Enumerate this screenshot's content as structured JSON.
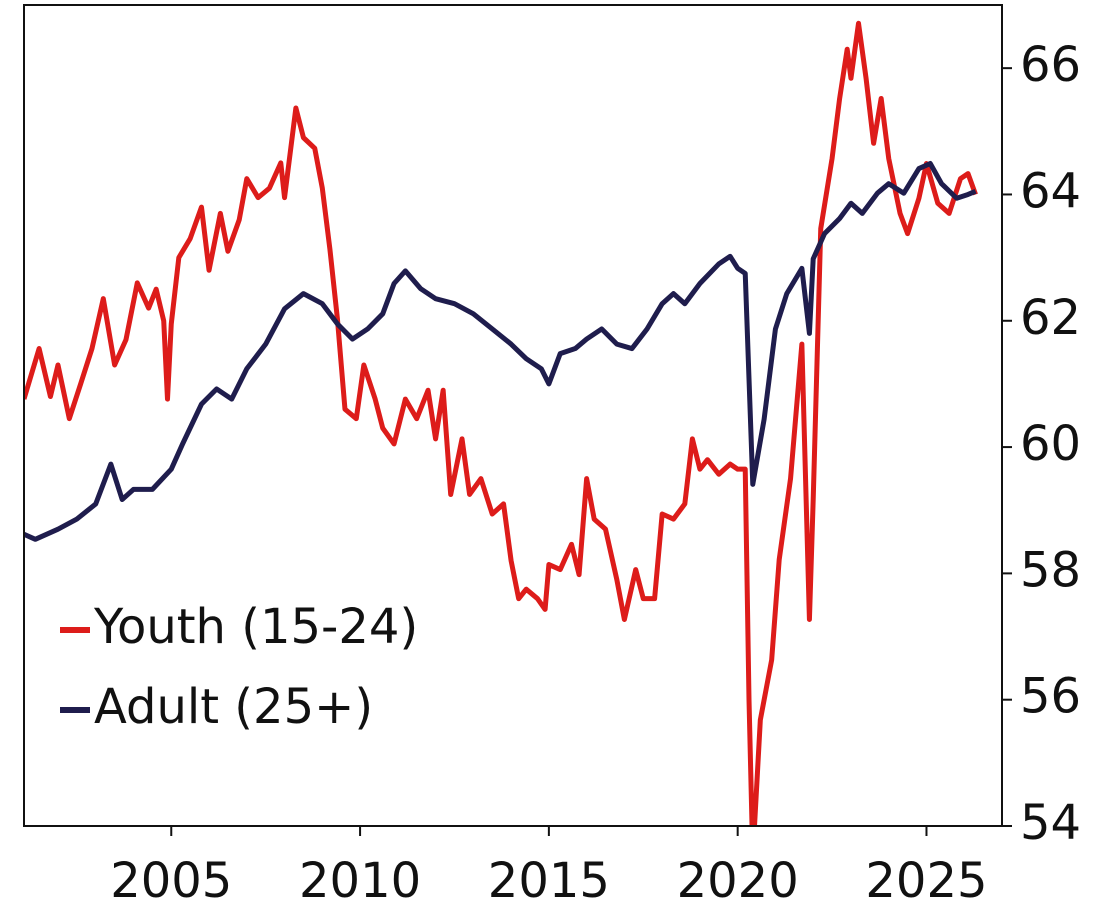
{
  "chart_data": {
    "type": "line",
    "xlim": [
      2001.1,
      2027.0
    ],
    "xticks": [
      2005,
      2010,
      2015,
      2020,
      2025
    ],
    "ylim": [
      54,
      67
    ],
    "yticks": [
      54,
      56,
      58,
      60,
      62,
      64,
      66
    ],
    "y_axis_side": "right",
    "legend": "lower left",
    "series": [
      {
        "name": "Youth (15-24)",
        "color": "#dd1c1a",
        "x": [
          2001.1,
          2001.5,
          2001.8,
          2002.0,
          2002.3,
          2002.6,
          2002.9,
          2003.2,
          2003.5,
          2003.8,
          2004.1,
          2004.4,
          2004.6,
          2004.8,
          2004.9,
          2005.0,
          2005.2,
          2005.5,
          2005.8,
          2006.0,
          2006.3,
          2006.5,
          2006.8,
          2007.0,
          2007.3,
          2007.6,
          2007.9,
          2008.0,
          2008.3,
          2008.5,
          2008.8,
          2009.0,
          2009.2,
          2009.4,
          2009.6,
          2009.9,
          2010.1,
          2010.4,
          2010.6,
          2010.9,
          2011.2,
          2011.5,
          2011.8,
          2012.0,
          2012.2,
          2012.4,
          2012.7,
          2012.9,
          2013.2,
          2013.5,
          2013.8,
          2014.0,
          2014.2,
          2014.4,
          2014.7,
          2014.9,
          2015.0,
          2015.3,
          2015.6,
          2015.8,
          2016.0,
          2016.2,
          2016.5,
          2016.8,
          2017.0,
          2017.3,
          2017.5,
          2017.8,
          2018.0,
          2018.3,
          2018.6,
          2018.8,
          2019.0,
          2019.2,
          2019.5,
          2019.8,
          2020.0,
          2020.2,
          2020.3,
          2020.4,
          2020.6,
          2020.9,
          2021.1,
          2021.4,
          2021.7,
          2021.9,
          2022.0,
          2022.2,
          2022.5,
          2022.7,
          2022.9,
          2023.0,
          2023.2,
          2023.4,
          2023.6,
          2023.8,
          2024.0,
          2024.3,
          2024.5,
          2024.8,
          2025.0,
          2025.3,
          2025.6,
          2025.9,
          2026.1,
          2026.3
        ],
        "values": [
          60.76,
          61.56,
          60.8,
          61.3,
          60.45,
          61.0,
          61.56,
          62.35,
          61.3,
          61.7,
          62.6,
          62.2,
          62.5,
          62.0,
          60.76,
          61.95,
          63.0,
          63.3,
          63.8,
          62.8,
          63.7,
          63.1,
          63.6,
          64.25,
          63.95,
          64.1,
          64.5,
          63.95,
          65.37,
          64.9,
          64.73,
          64.1,
          63.14,
          62.03,
          60.6,
          60.45,
          61.3,
          60.76,
          60.3,
          60.05,
          60.76,
          60.45,
          60.9,
          60.13,
          60.9,
          59.25,
          60.13,
          59.25,
          59.5,
          58.94,
          59.1,
          58.2,
          57.6,
          57.75,
          57.6,
          57.43,
          58.14,
          58.06,
          58.46,
          57.98,
          59.5,
          58.86,
          58.7,
          57.9,
          57.27,
          58.06,
          57.6,
          57.6,
          58.94,
          58.86,
          59.1,
          60.13,
          59.65,
          59.8,
          59.57,
          59.73,
          59.65,
          59.65,
          56.0,
          53.5,
          55.68,
          56.63,
          58.22,
          59.5,
          61.63,
          57.27,
          59.17,
          63.46,
          64.57,
          65.52,
          66.3,
          65.84,
          66.71,
          65.84,
          64.81,
          65.52,
          64.57,
          63.7,
          63.38,
          63.94,
          64.49,
          63.86,
          63.7,
          64.25,
          64.33,
          64.0
        ]
      },
      {
        "name": "Adult (25+)",
        "color": "#1f1d4d",
        "x": [
          2001.1,
          2001.4,
          2002.0,
          2002.5,
          2003.0,
          2003.4,
          2003.7,
          2004.0,
          2004.5,
          2005.0,
          2005.3,
          2005.8,
          2006.2,
          2006.6,
          2007.0,
          2007.5,
          2008.0,
          2008.5,
          2009.0,
          2009.4,
          2009.8,
          2010.2,
          2010.6,
          2010.9,
          2011.2,
          2011.6,
          2012.0,
          2012.5,
          2013.0,
          2013.5,
          2014.0,
          2014.4,
          2014.8,
          2015.0,
          2015.3,
          2015.7,
          2016.0,
          2016.4,
          2016.8,
          2017.2,
          2017.6,
          2018.0,
          2018.3,
          2018.6,
          2019.0,
          2019.5,
          2019.8,
          2020.0,
          2020.2,
          2020.3,
          2020.4,
          2020.7,
          2021.0,
          2021.3,
          2021.7,
          2021.9,
          2022.0,
          2022.3,
          2022.7,
          2023.0,
          2023.3,
          2023.7,
          2024.0,
          2024.4,
          2024.8,
          2025.1,
          2025.4,
          2025.8,
          2026.1,
          2026.3
        ],
        "values": [
          58.62,
          58.54,
          58.7,
          58.86,
          59.1,
          59.73,
          59.17,
          59.33,
          59.33,
          59.65,
          60.05,
          60.68,
          60.92,
          60.76,
          61.24,
          61.63,
          62.19,
          62.43,
          62.27,
          61.95,
          61.71,
          61.87,
          62.11,
          62.59,
          62.79,
          62.51,
          62.35,
          62.27,
          62.11,
          61.87,
          61.63,
          61.4,
          61.24,
          61.0,
          61.48,
          61.56,
          61.71,
          61.87,
          61.63,
          61.56,
          61.87,
          62.27,
          62.43,
          62.27,
          62.59,
          62.9,
          63.02,
          62.83,
          62.75,
          61.08,
          59.41,
          60.44,
          61.87,
          62.43,
          62.83,
          61.8,
          62.98,
          63.38,
          63.62,
          63.86,
          63.7,
          64.02,
          64.17,
          64.02,
          64.41,
          64.49,
          64.17,
          63.94,
          64.0,
          64.05
        ]
      }
    ]
  }
}
